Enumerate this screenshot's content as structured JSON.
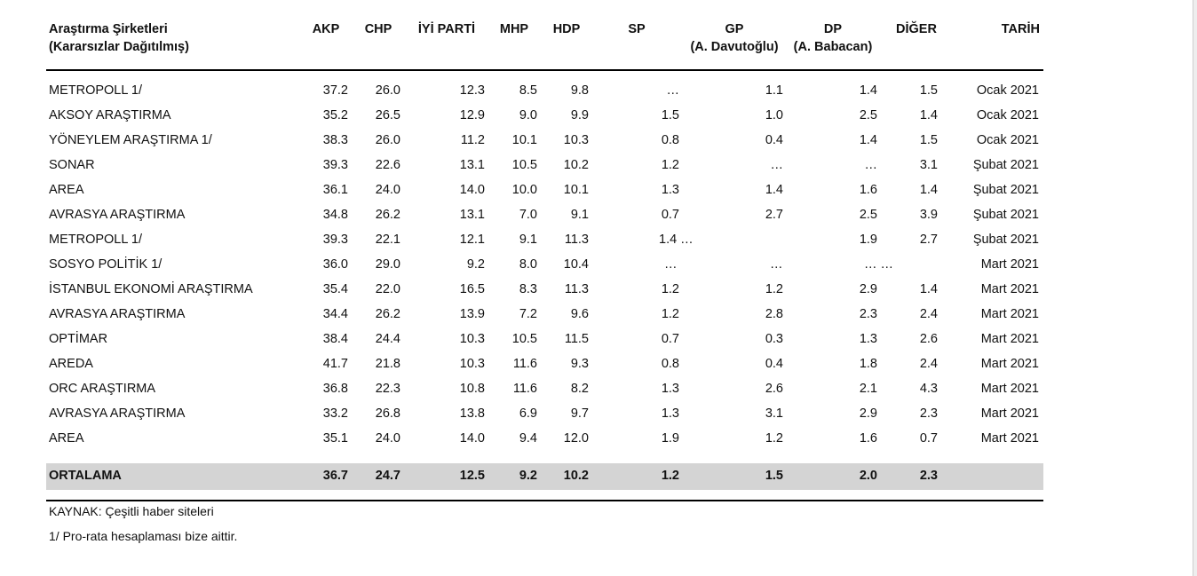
{
  "headers": {
    "company": [
      "Araştırma Şirketleri",
      "(Kararsızlar Dağıtılmış)"
    ],
    "akp": "AKP",
    "chp": "CHP",
    "iyi": "İYİ PARTİ",
    "mhp": "MHP",
    "hdp": "HDP",
    "sp": "SP",
    "gp": [
      "GP",
      "(A. Davutoğlu)"
    ],
    "dp": [
      "DP",
      "(A. Babacan)"
    ],
    "diger": "DİĞER",
    "tarih": "TARİH"
  },
  "rows": [
    {
      "company": "METROPOLL 1/",
      "akp": "37.2",
      "chp": "26.0",
      "iyi": "12.3",
      "mhp": "8.5",
      "hdp": "9.8",
      "sp": "…",
      "gp": "1.1",
      "dp": "1.4",
      "diger": "1.5",
      "tarih": "Ocak 2021"
    },
    {
      "company": "AKSOY ARAŞTIRMA",
      "akp": "35.2",
      "chp": "26.5",
      "iyi": "12.9",
      "mhp": "9.0",
      "hdp": "9.9",
      "sp": "1.5",
      "gp": "1.0",
      "dp": "2.5",
      "diger": "1.4",
      "tarih": "Ocak 2021"
    },
    {
      "company": "YÖNEYLEM ARAŞTIRMA 1/",
      "akp": "38.3",
      "chp": "26.0",
      "iyi": "11.2",
      "mhp": "10.1",
      "hdp": "10.3",
      "sp": "0.8",
      "gp": "0.4",
      "dp": "1.4",
      "diger": "1.5",
      "tarih": "Ocak 2021"
    },
    {
      "company": "SONAR",
      "akp": "39.3",
      "chp": "22.6",
      "iyi": "13.1",
      "mhp": "10.5",
      "hdp": "10.2",
      "sp": "1.2",
      "gp": "…",
      "dp": "…",
      "diger": "3.1",
      "tarih": "Şubat 2021"
    },
    {
      "company": "AREA",
      "akp": "36.1",
      "chp": "24.0",
      "iyi": "14.0",
      "mhp": "10.0",
      "hdp": "10.1",
      "sp": "1.3",
      "gp": "1.4",
      "dp": "1.6",
      "diger": "1.4",
      "tarih": "Şubat 2021"
    },
    {
      "company": "AVRASYA ARAŞTIRMA",
      "akp": "34.8",
      "chp": "26.2",
      "iyi": "13.1",
      "mhp": "7.0",
      "hdp": "9.1",
      "sp": "0.7",
      "gp": "2.7",
      "dp": "2.5",
      "diger": "3.9",
      "tarih": "Şubat 2021"
    },
    {
      "company": "METROPOLL 1/",
      "akp": "39.3",
      "chp": "22.1",
      "iyi": "12.1",
      "mhp": "9.1",
      "hdp": "11.3",
      "sp": "1.4 …",
      "gp": "",
      "dp": "1.9",
      "diger": "2.7",
      "tarih": "Şubat 2021"
    },
    {
      "company": "SOSYO POLİTİK 1/",
      "akp": "36.0",
      "chp": "29.0",
      "iyi": "9.2",
      "mhp": "8.0",
      "hdp": "10.4",
      "sp": "…",
      "gp": "…",
      "dp": "… …",
      "diger": "",
      "tarih": "Mart 2021"
    },
    {
      "company": "İSTANBUL EKONOMİ ARAŞTIRMA",
      "akp": "35.4",
      "chp": "22.0",
      "iyi": "16.5",
      "mhp": "8.3",
      "hdp": "11.3",
      "sp": "1.2",
      "gp": "1.2",
      "dp": "2.9",
      "diger": "1.4",
      "tarih": "Mart 2021"
    },
    {
      "company": "AVRASYA ARAŞTIRMA",
      "akp": "34.4",
      "chp": "26.2",
      "iyi": "13.9",
      "mhp": "7.2",
      "hdp": "9.6",
      "sp": "1.2",
      "gp": "2.8",
      "dp": "2.3",
      "diger": "2.4",
      "tarih": "Mart 2021"
    },
    {
      "company": "OPTİMAR",
      "akp": "38.4",
      "chp": "24.4",
      "iyi": "10.3",
      "mhp": "10.5",
      "hdp": "11.5",
      "sp": "0.7",
      "gp": "0.3",
      "dp": "1.3",
      "diger": "2.6",
      "tarih": "Mart 2021"
    },
    {
      "company": "AREDA",
      "akp": "41.7",
      "chp": "21.8",
      "iyi": "10.3",
      "mhp": "11.6",
      "hdp": "9.3",
      "sp": "0.8",
      "gp": "0.4",
      "dp": "1.8",
      "diger": "2.4",
      "tarih": "Mart 2021"
    },
    {
      "company": "ORC ARAŞTIRMA",
      "akp": "36.8",
      "chp": "22.3",
      "iyi": "10.8",
      "mhp": "11.6",
      "hdp": "8.2",
      "sp": "1.3",
      "gp": "2.6",
      "dp": "2.1",
      "diger": "4.3",
      "tarih": "Mart 2021"
    },
    {
      "company": "AVRASYA ARAŞTIRMA",
      "akp": "33.2",
      "chp": "26.8",
      "iyi": "13.8",
      "mhp": "6.9",
      "hdp": "9.7",
      "sp": "1.3",
      "gp": "3.1",
      "dp": "2.9",
      "diger": "2.3",
      "tarih": "Mart 2021"
    },
    {
      "company": "AREA",
      "akp": "35.1",
      "chp": "24.0",
      "iyi": "14.0",
      "mhp": "9.4",
      "hdp": "12.0",
      "sp": "1.9",
      "gp": "1.2",
      "dp": "1.6",
      "diger": "0.7",
      "tarih": "Mart 2021"
    }
  ],
  "average": {
    "company": "ORTALAMA",
    "akp": "36.7",
    "chp": "24.7",
    "iyi": "12.5",
    "mhp": "9.2",
    "hdp": "10.2",
    "sp": "1.2",
    "gp": "1.5",
    "dp": "2.0",
    "diger": "2.3",
    "tarih": ""
  },
  "notes": {
    "source": "KAYNAK: Çeşitli haber siteleri",
    "footnote": "1/ Pro-rata hesaplaması bize aittir."
  }
}
